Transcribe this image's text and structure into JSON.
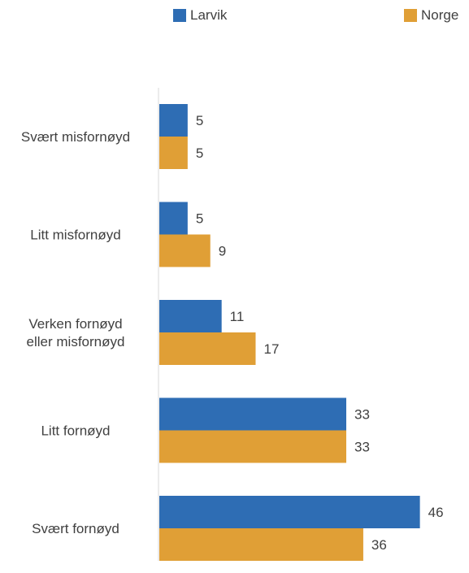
{
  "chart_data": {
    "type": "bar",
    "orientation": "horizontal",
    "categories": [
      [
        "Svært misfornøyd"
      ],
      [
        "Litt misfornøyd"
      ],
      [
        "Verken fornøyd",
        "eller misfornøyd"
      ],
      [
        "Litt fornøyd"
      ],
      [
        "Svært fornøyd"
      ]
    ],
    "series": [
      {
        "name": "Larvik",
        "color": "#2E6DB4",
        "values": [
          5,
          5,
          11,
          33,
          46
        ]
      },
      {
        "name": "Norge",
        "color": "#E09F36",
        "values": [
          5,
          9,
          17,
          33,
          36
        ]
      }
    ],
    "legend": {
      "placement": "top"
    },
    "grid": false,
    "data_labels": true,
    "xlim": [
      0,
      48
    ]
  }
}
